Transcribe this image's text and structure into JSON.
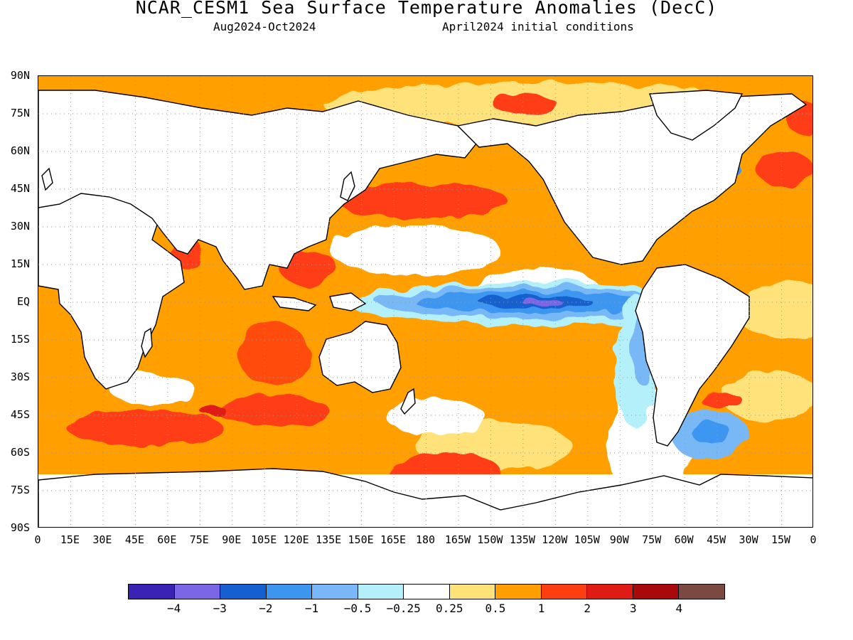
{
  "header": {
    "title": "NCAR_CESM1 Sea Surface Temperature Anomalies (DecC)",
    "period": "Aug2024-Oct2024",
    "init": "April2024 initial conditions"
  },
  "axes": {
    "lat_labels": [
      "90N",
      "75N",
      "60N",
      "45N",
      "30N",
      "15N",
      "EQ",
      "15S",
      "30S",
      "45S",
      "60S",
      "75S",
      "90S"
    ],
    "lon_labels": [
      "0",
      "15E",
      "30E",
      "45E",
      "60E",
      "75E",
      "90E",
      "105E",
      "120E",
      "135E",
      "150E",
      "165E",
      "180",
      "165W",
      "150W",
      "135W",
      "120W",
      "105W",
      "90W",
      "75W",
      "60W",
      "45W",
      "30W",
      "15W",
      "0"
    ]
  },
  "colorbar": {
    "colors": [
      "#3a22b4",
      "#7b66e6",
      "#1560d0",
      "#3c96f0",
      "#78b8f6",
      "#b4f0fa",
      "#ffffff",
      "#ffe27a",
      "#ffa000",
      "#ff3d12",
      "#e01a14",
      "#a80a0a",
      "#7a4a40"
    ],
    "labels": [
      "-4",
      "-3",
      "-2",
      "-1",
      "-0.5",
      "-0.25",
      "0.25",
      "0.5",
      "1",
      "2",
      "3",
      "4"
    ]
  },
  "chart_data": {
    "type": "heatmap",
    "title": "NCAR_CESM1 Sea Surface Temperature Anomalies (DecC)",
    "subtitle": [
      "Aug2024-Oct2024",
      "April2024 initial conditions"
    ],
    "xlabel": "",
    "ylabel": "",
    "x_range": [
      0,
      360
    ],
    "y_range": [
      -90,
      90
    ],
    "grid": true,
    "levels": [
      -4,
      -3,
      -2,
      -1,
      -0.5,
      -0.25,
      0.25,
      0.5,
      1,
      2,
      3,
      4
    ],
    "regions": [
      {
        "name": "equatorial-east-pacific-cold-tongue",
        "lon": [
          185,
          260
        ],
        "lat": [
          -8,
          5
        ],
        "value": -1.2
      },
      {
        "name": "nino-core-minimum",
        "lon": [
          218,
          236
        ],
        "lat": [
          -2,
          1
        ],
        "value": -3.2
      },
      {
        "name": "south-america-coastal-cool",
        "lon": [
          268,
          290
        ],
        "lat": [
          -55,
          -5
        ],
        "value": -0.6
      },
      {
        "name": "southwest-atlantic-cool",
        "lon": [
          300,
          335
        ],
        "lat": [
          -60,
          -40
        ],
        "value": -1.2
      },
      {
        "name": "labrador-cool-patch",
        "lon": [
          305,
          315
        ],
        "lat": [
          48,
          54
        ],
        "value": -1.5
      },
      {
        "name": "north-pacific-warm",
        "lon": [
          140,
          230
        ],
        "lat": [
          28,
          55
        ],
        "value": 1.0
      },
      {
        "name": "kuroshio-extension-hot",
        "lon": [
          145,
          190
        ],
        "lat": [
          35,
          45
        ],
        "value": 2.0
      },
      {
        "name": "north-atlantic-warm",
        "lon": [
          280,
          360
        ],
        "lat": [
          10,
          60
        ],
        "value": 1.0
      },
      {
        "name": "indian-ocean-warm",
        "lon": [
          40,
          115
        ],
        "lat": [
          -30,
          20
        ],
        "value": 1.0
      },
      {
        "name": "southern-ocean-warm-band",
        "lon": [
          0,
          140
        ],
        "lat": [
          -55,
          -40
        ],
        "value": 1.5
      },
      {
        "name": "south-pacific-warm",
        "lon": [
          150,
          250
        ],
        "lat": [
          -50,
          -10
        ],
        "value": 0.8
      },
      {
        "name": "west-pacific-warm",
        "lon": [
          120,
          180
        ],
        "lat": [
          -10,
          20
        ],
        "value": 1.0
      },
      {
        "name": "argentine-shelf-hot",
        "lon": [
          305,
          320
        ],
        "lat": [
          -46,
          -38
        ],
        "value": 2.2
      }
    ]
  }
}
